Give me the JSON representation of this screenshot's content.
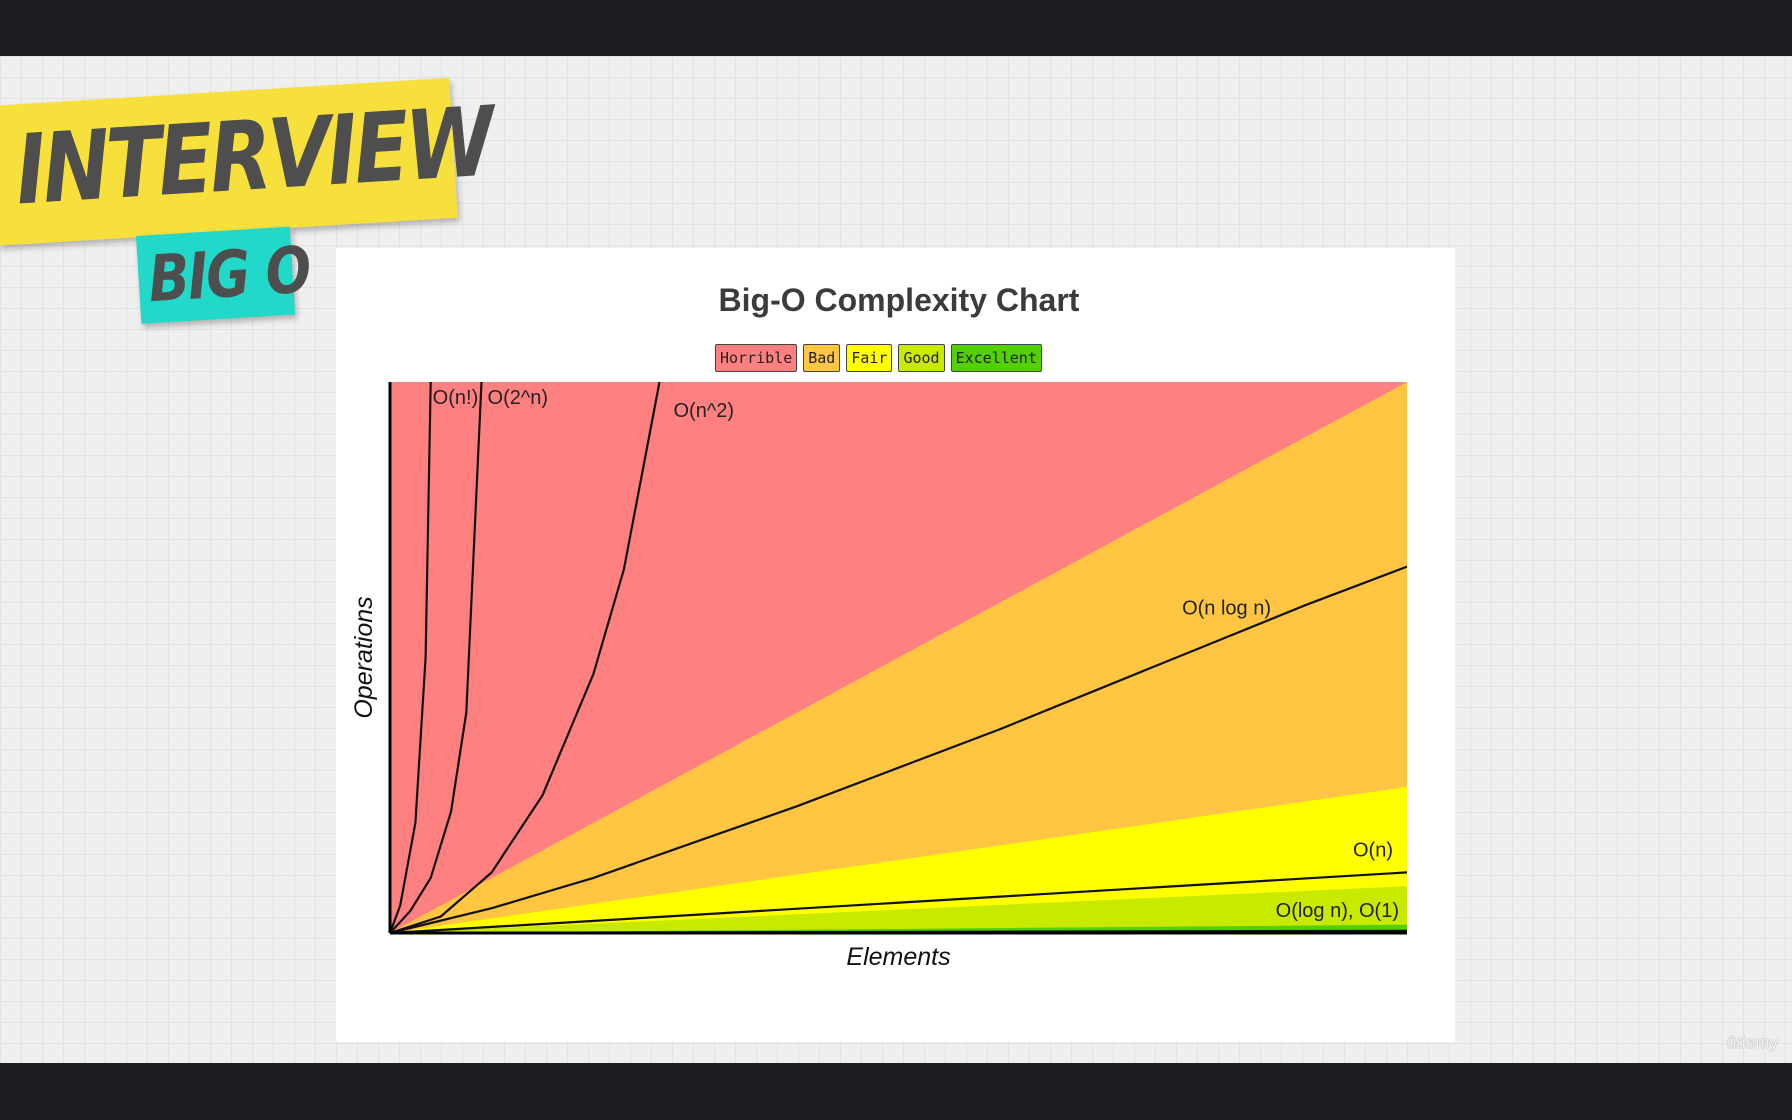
{
  "stickers": {
    "main": "INTERVIEW",
    "sub": "BIG O"
  },
  "watermark": "ûdemy",
  "chart_data": {
    "type": "area",
    "title": "Big-O Complexity Chart",
    "xlabel": "Elements",
    "ylabel": "Operations",
    "legend": {
      "placement": "top-center",
      "items": [
        {
          "label": "Horrible",
          "color": "#ff8080"
        },
        {
          "label": "Bad",
          "color": "#ffc543"
        },
        {
          "label": "Fair",
          "color": "#ffff00"
        },
        {
          "label": "Good",
          "color": "#c8ea00"
        },
        {
          "label": "Excellent",
          "color": "#53d000"
        }
      ]
    },
    "xlim": [
      0,
      100
    ],
    "ylim": [
      0,
      100
    ],
    "regions": [
      {
        "category": "Horrible",
        "color": "#ff8080",
        "upper_at_x100": 100
      },
      {
        "category": "Bad",
        "color": "#ffc543",
        "upper_at_x100": 100
      },
      {
        "category": "Fair",
        "color": "#ffff00",
        "upper_at_x100": 26.5
      },
      {
        "category": "Good",
        "color": "#c8ea00",
        "upper_at_x100": 8.5
      },
      {
        "category": "Excellent",
        "color": "#53d000",
        "upper_at_x100": 1.5
      }
    ],
    "series": [
      {
        "name": "O(n!)",
        "points": [
          [
            0,
            0
          ],
          [
            1,
            5
          ],
          [
            2.5,
            20
          ],
          [
            3.5,
            50
          ],
          [
            4,
            100
          ]
        ]
      },
      {
        "name": "O(2^n)",
        "points": [
          [
            0,
            0
          ],
          [
            2,
            4
          ],
          [
            4,
            10
          ],
          [
            6,
            22
          ],
          [
            7.5,
            40
          ],
          [
            9,
            100
          ]
        ]
      },
      {
        "name": "O(n^2)",
        "points": [
          [
            0,
            0
          ],
          [
            5,
            3
          ],
          [
            10,
            11
          ],
          [
            15,
            25
          ],
          [
            20,
            47
          ],
          [
            23,
            66
          ],
          [
            26.5,
            100
          ]
        ]
      },
      {
        "name": "O(n log n)",
        "points": [
          [
            0,
            0
          ],
          [
            10,
            4.5
          ],
          [
            20,
            10
          ],
          [
            30,
            16.5
          ],
          [
            40,
            23
          ],
          [
            50,
            30
          ],
          [
            60,
            37
          ],
          [
            70,
            44.5
          ],
          [
            80,
            52
          ],
          [
            90,
            59.5
          ],
          [
            100,
            66.5
          ]
        ]
      },
      {
        "name": "O(n)",
        "points": [
          [
            0,
            0
          ],
          [
            100,
            11
          ]
        ]
      },
      {
        "name": "O(log n), O(1)",
        "points": [
          [
            0,
            0
          ],
          [
            100,
            0.4
          ]
        ]
      }
    ]
  }
}
